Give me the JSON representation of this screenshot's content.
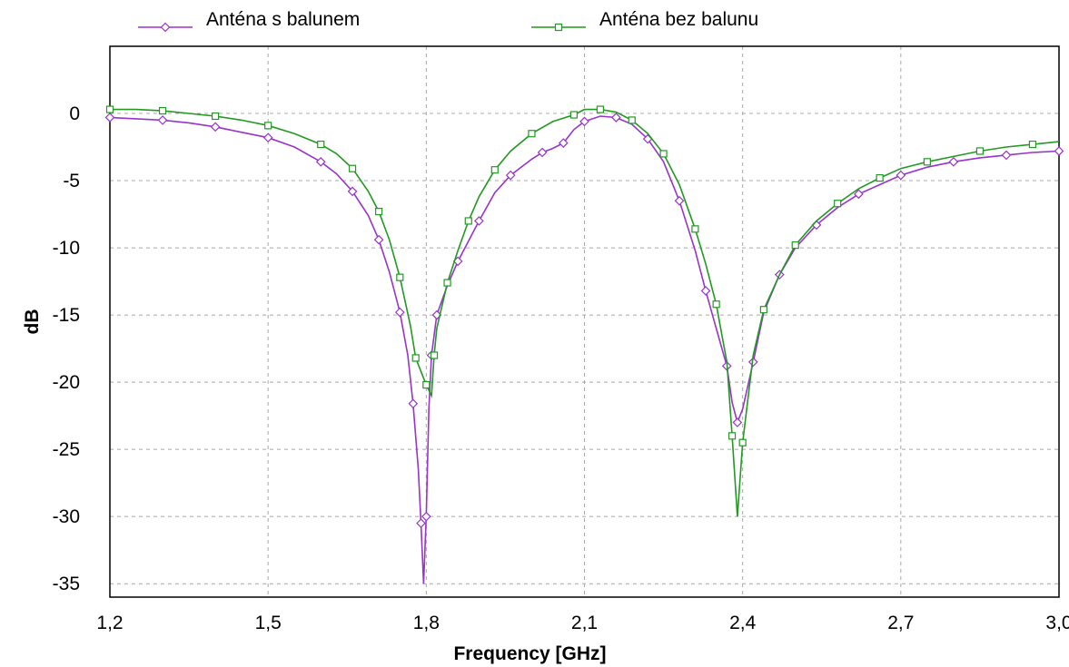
{
  "chart_data": {
    "type": "line",
    "title": "",
    "xlabel": "Frequency [GHz]",
    "ylabel": "dB",
    "xlim": [
      1.2,
      3.0
    ],
    "ylim": [
      -36,
      5
    ],
    "x_ticks": [
      1.2,
      1.5,
      1.8,
      2.1,
      2.4,
      2.7,
      3.0
    ],
    "x_tick_labels": [
      "1,2",
      "1,5",
      "1,8",
      "2,1",
      "2,4",
      "2,7",
      "3,0"
    ],
    "y_ticks": [
      0,
      -5,
      -10,
      -15,
      -20,
      -25,
      -30,
      -35
    ],
    "y_tick_labels": [
      "0",
      "-5",
      "-10",
      "-15",
      "-20",
      "-25",
      "-30",
      "-35"
    ],
    "grid": true,
    "legend_position": "top",
    "series": [
      {
        "name": "Anténa s balunem",
        "color": "#9933cc",
        "marker": "diamond",
        "x": [
          1.2,
          1.25,
          1.3,
          1.35,
          1.4,
          1.45,
          1.5,
          1.55,
          1.6,
          1.63,
          1.66,
          1.69,
          1.71,
          1.73,
          1.75,
          1.765,
          1.775,
          1.785,
          1.79,
          1.795,
          1.8,
          1.805,
          1.81,
          1.815,
          1.82,
          1.84,
          1.86,
          1.88,
          1.9,
          1.93,
          1.96,
          2.0,
          2.02,
          2.04,
          2.06,
          2.08,
          2.1,
          2.13,
          2.16,
          2.19,
          2.22,
          2.25,
          2.28,
          2.31,
          2.33,
          2.35,
          2.37,
          2.38,
          2.39,
          2.4,
          2.42,
          2.44,
          2.47,
          2.5,
          2.54,
          2.58,
          2.62,
          2.66,
          2.7,
          2.75,
          2.8,
          2.85,
          2.9,
          2.95,
          3.0
        ],
        "y": [
          -0.3,
          -0.4,
          -0.5,
          -0.7,
          -1.0,
          -1.4,
          -1.8,
          -2.5,
          -3.6,
          -4.5,
          -5.8,
          -7.6,
          -9.4,
          -11.8,
          -14.8,
          -18.0,
          -21.6,
          -26.5,
          -30.5,
          -35.0,
          -30.0,
          -22.0,
          -18.0,
          -16.5,
          -15.0,
          -12.8,
          -11.0,
          -9.5,
          -8.0,
          -5.9,
          -4.6,
          -3.4,
          -2.9,
          -2.6,
          -2.2,
          -1.2,
          -0.6,
          -0.2,
          -0.3,
          -0.8,
          -1.9,
          -3.6,
          -6.5,
          -10.2,
          -13.2,
          -16.0,
          -18.8,
          -21.5,
          -23.0,
          -22.0,
          -18.5,
          -14.8,
          -12.0,
          -10.0,
          -8.3,
          -7.0,
          -6.0,
          -5.3,
          -4.6,
          -4.0,
          -3.6,
          -3.3,
          -3.1,
          -2.9,
          -2.8
        ]
      },
      {
        "name": "Anténa bez balunu",
        "color": "#229922",
        "marker": "square",
        "x": [
          1.2,
          1.25,
          1.3,
          1.35,
          1.4,
          1.45,
          1.5,
          1.55,
          1.6,
          1.63,
          1.66,
          1.69,
          1.71,
          1.73,
          1.75,
          1.77,
          1.78,
          1.79,
          1.8,
          1.81,
          1.815,
          1.82,
          1.84,
          1.86,
          1.88,
          1.9,
          1.93,
          1.96,
          2.0,
          2.04,
          2.08,
          2.1,
          2.13,
          2.16,
          2.19,
          2.22,
          2.25,
          2.28,
          2.31,
          2.33,
          2.35,
          2.37,
          2.38,
          2.39,
          2.4,
          2.42,
          2.44,
          2.47,
          2.5,
          2.54,
          2.58,
          2.62,
          2.66,
          2.7,
          2.75,
          2.8,
          2.85,
          2.9,
          2.95,
          3.0
        ],
        "y": [
          0.3,
          0.3,
          0.2,
          0.0,
          -0.2,
          -0.5,
          -0.9,
          -1.5,
          -2.3,
          -3.0,
          -4.1,
          -5.8,
          -7.3,
          -9.4,
          -12.2,
          -15.8,
          -18.2,
          -19.2,
          -20.2,
          -21.0,
          -18.0,
          -16.0,
          -12.6,
          -10.2,
          -8.0,
          -6.2,
          -4.2,
          -2.8,
          -1.5,
          -0.6,
          -0.1,
          0.3,
          0.3,
          0.1,
          -0.5,
          -1.5,
          -3.0,
          -5.3,
          -8.6,
          -11.2,
          -14.2,
          -18.5,
          -24.0,
          -30.0,
          -24.5,
          -18.0,
          -14.6,
          -12.0,
          -9.8,
          -8.0,
          -6.7,
          -5.6,
          -4.8,
          -4.1,
          -3.6,
          -3.2,
          -2.8,
          -2.5,
          -2.3,
          -2.1
        ]
      }
    ]
  }
}
